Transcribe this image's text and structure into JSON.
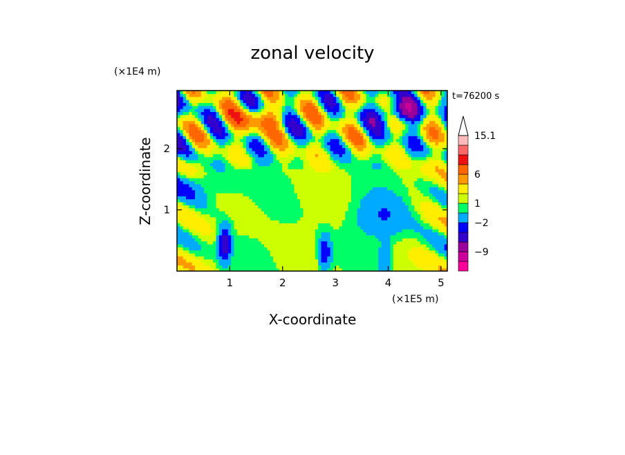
{
  "chart_data": {
    "type": "heatmap",
    "title": "zonal velocity",
    "xlabel": "X-coordinate",
    "ylabel": "Z-coordinate",
    "x_multiplier": "(×1E5 m)",
    "y_multiplier": "(×1E4 m)",
    "time_label": "t=76200 s",
    "xlim": [
      0,
      5.12
    ],
    "ylim": [
      0,
      2.95
    ],
    "x_ticks": [
      {
        "value": 1,
        "label": "1"
      },
      {
        "value": 2,
        "label": "2"
      },
      {
        "value": 3,
        "label": "3"
      },
      {
        "value": 4,
        "label": "4"
      },
      {
        "value": 5,
        "label": "5"
      }
    ],
    "y_ticks": [
      {
        "value": 1,
        "label": "1"
      },
      {
        "value": 2,
        "label": "2"
      }
    ],
    "colorbar": {
      "levels_low_to_high": [
        -15,
        -12,
        -9,
        -6,
        -4,
        -2,
        0,
        1,
        2,
        4,
        6,
        9,
        12,
        15.1
      ],
      "colors_low_to_high": [
        "#ff0099",
        "#cc0099",
        "#990099",
        "#3300cc",
        "#0000ff",
        "#00aaff",
        "#00ff66",
        "#ccff00",
        "#ffee00",
        "#ff9900",
        "#ff6600",
        "#ee1111",
        "#ff6666",
        "#ffbbbb"
      ],
      "labels": [
        {
          "value": 15.1,
          "label": "15.1"
        },
        {
          "value": 6,
          "label": "6"
        },
        {
          "value": 1,
          "label": "1"
        },
        {
          "value": -2,
          "label": "−2"
        },
        {
          "value": -9,
          "label": "−9"
        }
      ],
      "extend_top": true
    },
    "field_features": [
      {
        "kind": "background",
        "value": 1,
        "description": "weak positive flow dominates lower and middle domain"
      },
      {
        "kind": "wave_band",
        "x_range": [
          0,
          5.12
        ],
        "z_range": [
          2.0,
          2.95
        ],
        "amplitude": 6,
        "description": "alternating orange and blue gravity-wave bands in upper layer"
      },
      {
        "kind": "jet",
        "x_center": 1.6,
        "z_center": 2.5,
        "value": 6
      },
      {
        "kind": "jet",
        "x_center": 4.2,
        "z_center": 2.6,
        "value": -6
      },
      {
        "kind": "mountain_wave",
        "x_center": 0.9,
        "z_center": 0.45,
        "value": -6
      },
      {
        "kind": "mountain_wave",
        "x_center": 2.8,
        "z_center": 0.3,
        "value": -4
      },
      {
        "kind": "mountain_wave",
        "x_center": 3.95,
        "z_center": 0.2,
        "value": -2
      }
    ]
  }
}
